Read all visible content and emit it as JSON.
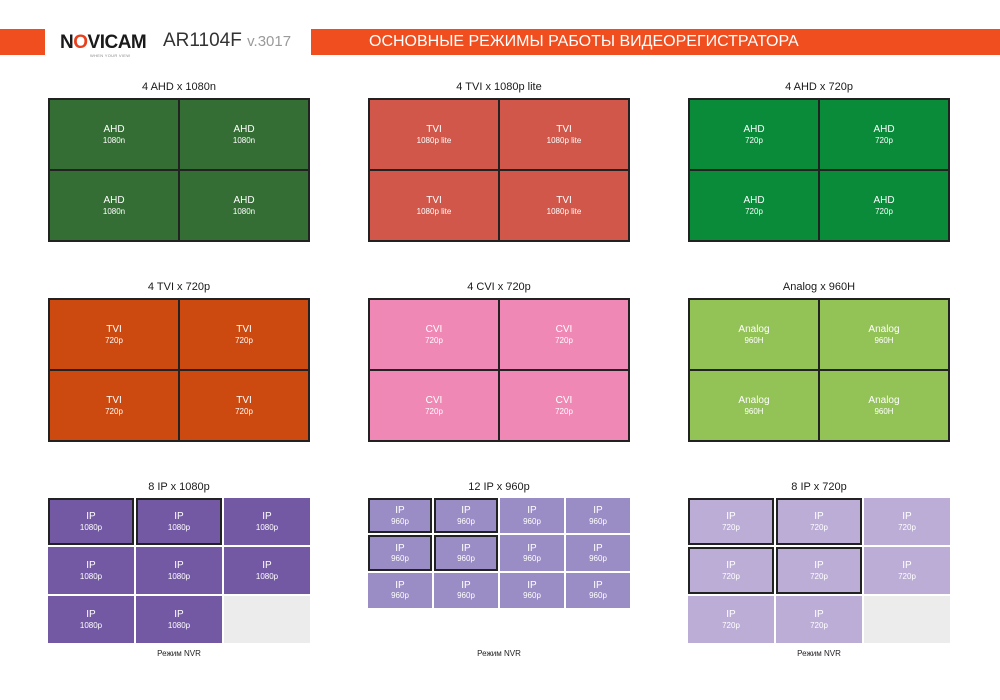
{
  "header": {
    "brand": "NOVICAM",
    "tagline": "WHEN YOUR VIEW",
    "model": "AR1104F",
    "version": "v.3017",
    "title": "ОСНОВНЫЕ РЕЖИМЫ РАБОТЫ ВИДЕОРЕГИСТРАТОРА"
  },
  "colors": {
    "accent": "#f04e1e",
    "ahd_1080n": "#356e35",
    "tvi_1080p_lite": "#d0574a",
    "ahd_720p": "#0a8b3a",
    "tvi_720p": "#cc4a10",
    "cvi_720p": "#ef88b5",
    "analog_960h": "#93c257",
    "ip_1080p": "#7358a3",
    "ip_960p": "#9a8cc4",
    "ip_720p": "#bcadd6"
  },
  "panels": [
    {
      "title": "4 AHD x 1080n",
      "layout": "2x2",
      "color": "ahd_1080n",
      "cells": [
        {
          "type": "AHD",
          "res": "1080n"
        },
        {
          "type": "AHD",
          "res": "1080n"
        },
        {
          "type": "AHD",
          "res": "1080n"
        },
        {
          "type": "AHD",
          "res": "1080n"
        }
      ]
    },
    {
      "title": "4 TVI x 1080p lite",
      "layout": "2x2",
      "color": "tvi_1080p_lite",
      "cells": [
        {
          "type": "TVI",
          "res": "1080p lite"
        },
        {
          "type": "TVI",
          "res": "1080p lite"
        },
        {
          "type": "TVI",
          "res": "1080p lite"
        },
        {
          "type": "TVI",
          "res": "1080p lite"
        }
      ]
    },
    {
      "title": "4 AHD x 720p",
      "layout": "2x2",
      "color": "ahd_720p",
      "cells": [
        {
          "type": "AHD",
          "res": "720p"
        },
        {
          "type": "AHD",
          "res": "720p"
        },
        {
          "type": "AHD",
          "res": "720p"
        },
        {
          "type": "AHD",
          "res": "720p"
        }
      ]
    },
    {
      "title": "4 TVI x 720p",
      "layout": "2x2",
      "color": "tvi_720p",
      "cells": [
        {
          "type": "TVI",
          "res": "720p"
        },
        {
          "type": "TVI",
          "res": "720p"
        },
        {
          "type": "TVI",
          "res": "720p"
        },
        {
          "type": "TVI",
          "res": "720p"
        }
      ]
    },
    {
      "title": "4 CVI x 720p",
      "layout": "2x2",
      "color": "cvi_720p",
      "cells": [
        {
          "type": "CVI",
          "res": "720p"
        },
        {
          "type": "CVI",
          "res": "720p"
        },
        {
          "type": "CVI",
          "res": "720p"
        },
        {
          "type": "CVI",
          "res": "720p"
        }
      ]
    },
    {
      "title": "Analog x 960H",
      "layout": "2x2",
      "color": "analog_960h",
      "cells": [
        {
          "type": "Analog",
          "res": "960H"
        },
        {
          "type": "Analog",
          "res": "960H"
        },
        {
          "type": "Analog",
          "res": "960H"
        },
        {
          "type": "Analog",
          "res": "960H"
        }
      ]
    },
    {
      "title": "8 IP x 1080p",
      "layout": "3x3",
      "color": "ip_1080p",
      "footnote": "Режим NVR",
      "cells": [
        {
          "type": "IP",
          "res": "1080p",
          "hl": true
        },
        {
          "type": "IP",
          "res": "1080p",
          "hl": true
        },
        {
          "type": "IP",
          "res": "1080p"
        },
        {
          "type": "IP",
          "res": "1080p"
        },
        {
          "type": "IP",
          "res": "1080p"
        },
        {
          "type": "IP",
          "res": "1080p"
        },
        {
          "type": "IP",
          "res": "1080p"
        },
        {
          "type": "IP",
          "res": "1080p"
        },
        {
          "empty": true
        }
      ]
    },
    {
      "title": "12 IP x 960p",
      "layout": "4x3",
      "color": "ip_960p",
      "footnote": "Режим NVR",
      "cells": [
        {
          "type": "IP",
          "res": "960p",
          "hl": true
        },
        {
          "type": "IP",
          "res": "960p",
          "hl": true
        },
        {
          "type": "IP",
          "res": "960p"
        },
        {
          "type": "IP",
          "res": "960p"
        },
        {
          "type": "IP",
          "res": "960p",
          "hl": true
        },
        {
          "type": "IP",
          "res": "960p",
          "hl": true
        },
        {
          "type": "IP",
          "res": "960p"
        },
        {
          "type": "IP",
          "res": "960p"
        },
        {
          "type": "IP",
          "res": "960p"
        },
        {
          "type": "IP",
          "res": "960p"
        },
        {
          "type": "IP",
          "res": "960p"
        },
        {
          "type": "IP",
          "res": "960p"
        }
      ]
    },
    {
      "title": "8 IP x 720p",
      "layout": "3x3",
      "color": "ip_720p",
      "footnote": "Режим NVR",
      "cells": [
        {
          "type": "IP",
          "res": "720p",
          "hl": true
        },
        {
          "type": "IP",
          "res": "720p",
          "hl": true
        },
        {
          "type": "IP",
          "res": "720p"
        },
        {
          "type": "IP",
          "res": "720p",
          "hl": true
        },
        {
          "type": "IP",
          "res": "720p",
          "hl": true
        },
        {
          "type": "IP",
          "res": "720p"
        },
        {
          "type": "IP",
          "res": "720p"
        },
        {
          "type": "IP",
          "res": "720p"
        },
        {
          "empty": true
        }
      ]
    }
  ]
}
